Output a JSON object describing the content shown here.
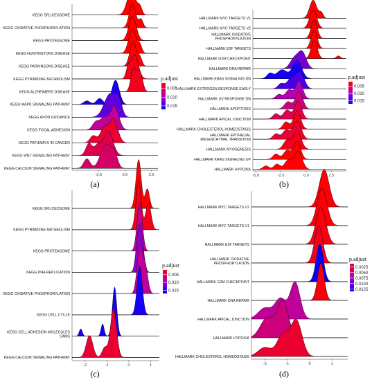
{
  "chart_data": [
    {
      "panel": "(a)",
      "type": "ridgeline",
      "xlim": [
        -5,
        3.1
      ],
      "xticks": [
        -2.5,
        0.0,
        2.5
      ],
      "xtick_labels": [
        "-2.5",
        "0.0",
        "2.5"
      ],
      "legend_title": "p.adjust",
      "legend_ticks": [
        0.005,
        0.01,
        0.015
      ],
      "legend_tick_labels": [
        "0.005",
        "0.010",
        "0.015"
      ],
      "legend_range": [
        0.002,
        0.017
      ],
      "series": [
        {
          "name": "KEGG SPLICEOSOME",
          "p": 0.002,
          "peaks": [
            [
              0.6,
              0.4,
              1.0
            ],
            [
              1.4,
              0.2,
              0.3
            ]
          ]
        },
        {
          "name": "KEGG OXIDATIVE PHOSPHORYLATION",
          "p": 0.002,
          "peaks": [
            [
              0.7,
              0.3,
              1.0
            ],
            [
              1.5,
              0.2,
              0.35
            ]
          ]
        },
        {
          "name": "KEGG PROTEASOME",
          "p": 0.002,
          "peaks": [
            [
              0.7,
              0.35,
              1.0
            ]
          ]
        },
        {
          "name": "KEGG HUNTINGTONS DISEASE",
          "p": 0.002,
          "peaks": [
            [
              0.7,
              0.35,
              1.0
            ],
            [
              1.4,
              0.2,
              0.3
            ]
          ]
        },
        {
          "name": "KEGG PARKINSONS DISEASE",
          "p": 0.002,
          "peaks": [
            [
              0.75,
              0.3,
              1.0
            ],
            [
              1.4,
              0.2,
              0.35
            ]
          ]
        },
        {
          "name": "KEGG PYRIMIDINE METABOLISM",
          "p": 0.003,
          "peaks": [
            [
              0.9,
              0.35,
              1.0
            ],
            [
              0.3,
              0.2,
              0.4
            ]
          ]
        },
        {
          "name": "KEGG ALZHEIMERS DISEASE",
          "p": 0.003,
          "peaks": [
            [
              0.8,
              0.25,
              0.7
            ],
            [
              1.4,
              0.25,
              0.6
            ]
          ]
        },
        {
          "name": "KEGG MAPK SIGNALING PATHWAY",
          "p": 0.016,
          "peaks": [
            [
              -0.9,
              0.35,
              1.0
            ],
            [
              -2.4,
              0.3,
              0.25
            ],
            [
              -3.6,
              0.3,
              0.15
            ]
          ]
        },
        {
          "name": "KEGG AXON GUIDANCE",
          "p": 0.013,
          "peaks": [
            [
              -1.4,
              0.55,
              1.0
            ],
            [
              -0.6,
              0.3,
              0.6
            ]
          ]
        },
        {
          "name": "KEGG FOCAL ADHESION",
          "p": 0.008,
          "peaks": [
            [
              -1.0,
              0.4,
              1.0
            ],
            [
              -2.0,
              0.4,
              0.5
            ],
            [
              -2.8,
              0.3,
              0.3
            ]
          ]
        },
        {
          "name": "KEGG PATHWAYS IN CANCER",
          "p": 0.004,
          "peaks": [
            [
              -1.1,
              0.4,
              1.0
            ],
            [
              -2.0,
              0.35,
              0.6
            ],
            [
              -3.0,
              0.3,
              0.3
            ]
          ]
        },
        {
          "name": "KEGG WNT SIGNALING PATHWAY",
          "p": 0.005,
          "peaks": [
            [
              -1.6,
              0.45,
              1.0
            ],
            [
              -3.4,
              0.3,
              0.5
            ],
            [
              -2.6,
              0.3,
              0.4
            ]
          ]
        },
        {
          "name": "KEGG CALCIUM SIGNALING PATHWAY",
          "p": 0.006,
          "peaks": [
            [
              -1.8,
              0.5,
              1.0
            ],
            [
              -3.6,
              0.3,
              0.4
            ],
            [
              -1.0,
              0.3,
              0.5
            ]
          ]
        }
      ]
    },
    {
      "panel": "(b)",
      "type": "ridgeline",
      "xlim": [
        -5.3,
        4.0
      ],
      "xticks": [
        -5.0,
        -2.5,
        0.0,
        2.5
      ],
      "xtick_labels": [
        "-5.0",
        "-2.5",
        "0.0",
        "2.5"
      ],
      "legend_title": "p.adjust",
      "legend_ticks": [
        0.005,
        0.01,
        0.015
      ],
      "legend_tick_labels": [
        "0.005",
        "0.010",
        "0.015"
      ],
      "legend_range": [
        0.002,
        0.017
      ],
      "series": [
        {
          "name": "HALLMARK MYC TARGETS V1",
          "p": 0.002,
          "peaks": [
            [
              0.7,
              0.35,
              1.0
            ],
            [
              1.5,
              0.2,
              0.3
            ]
          ]
        },
        {
          "name": "HALLMARK MYC TARGETS V2",
          "p": 0.002,
          "peaks": [
            [
              0.7,
              0.35,
              1.0
            ]
          ]
        },
        {
          "name": "HALLMARK OXIDATIVE PHOSPHORYLATION",
          "p": 0.002,
          "peaks": [
            [
              0.8,
              0.3,
              1.0
            ]
          ]
        },
        {
          "name": "HALLMARK E2F TARGETS",
          "p": 0.002,
          "peaks": [
            [
              0.8,
              0.3,
              1.0
            ]
          ]
        },
        {
          "name": "HALLMARK G2M CHECKPOINT",
          "p": 0.002,
          "peaks": [
            [
              0.8,
              0.3,
              1.0
            ],
            [
              3.2,
              0.2,
              0.15
            ]
          ]
        },
        {
          "name": "HALLMARK DNA REPAIR",
          "p": 0.012,
          "peaks": [
            [
              -0.4,
              0.4,
              1.0
            ],
            [
              -1.2,
              0.4,
              0.6
            ]
          ]
        },
        {
          "name": "HALLMARK KRAS SIGNALING DN",
          "p": 0.016,
          "peaks": [
            [
              -0.9,
              0.45,
              1.0
            ],
            [
              -2.4,
              0.5,
              0.5
            ],
            [
              -3.6,
              0.3,
              0.3
            ]
          ]
        },
        {
          "name": "HALLMARK ESTROGEN RESPONSE EARLY",
          "p": 0.014,
          "peaks": [
            [
              -0.6,
              0.4,
              1.0
            ],
            [
              -1.5,
              0.4,
              0.6
            ],
            [
              -2.5,
              0.3,
              0.3
            ]
          ]
        },
        {
          "name": "HALLMARK UV RESPONSE DN",
          "p": 0.009,
          "peaks": [
            [
              -0.7,
              0.35,
              1.0
            ],
            [
              -1.7,
              0.35,
              0.5
            ],
            [
              -2.7,
              0.3,
              0.25
            ]
          ]
        },
        {
          "name": "HALLMARK APOPTOSIS",
          "p": 0.007,
          "peaks": [
            [
              -0.7,
              0.35,
              1.0
            ],
            [
              -1.8,
              0.35,
              0.4
            ]
          ]
        },
        {
          "name": "HALLMARK APICAL JUNCTION",
          "p": 0.005,
          "peaks": [
            [
              -0.8,
              0.35,
              1.0
            ],
            [
              -1.9,
              0.35,
              0.5
            ],
            [
              -3.0,
              0.3,
              0.3
            ]
          ]
        },
        {
          "name": "HALLMARK CHOLESTEROL HOMEOSTASIS",
          "p": 0.003,
          "peaks": [
            [
              -0.9,
              0.35,
              1.0
            ],
            [
              -2.0,
              0.3,
              0.4
            ]
          ]
        },
        {
          "name": "HALLMARK EPITHELIAL MESENCHYMAL TRANSITION",
          "p": 0.004,
          "peaks": [
            [
              -0.9,
              0.4,
              1.0
            ],
            [
              -2.0,
              0.35,
              0.5
            ],
            [
              -3.0,
              0.3,
              0.3
            ]
          ]
        },
        {
          "name": "HALLMARK MYOGENESIS",
          "p": 0.003,
          "peaks": [
            [
              -0.9,
              0.4,
              1.0
            ],
            [
              -1.9,
              0.35,
              0.5
            ]
          ]
        },
        {
          "name": "HALLMARK KRAS SIGNALING UP",
          "p": 0.002,
          "peaks": [
            [
              -0.9,
              0.35,
              1.0
            ],
            [
              -1.9,
              0.35,
              0.5
            ],
            [
              -3.0,
              0.3,
              0.3
            ]
          ]
        },
        {
          "name": "HALLMARK HYPOXIA",
          "p": 0.002,
          "peaks": [
            [
              -0.8,
              0.4,
              1.0
            ],
            [
              -1.8,
              0.35,
              0.5
            ],
            [
              -2.9,
              0.3,
              0.3
            ],
            [
              -4.0,
              0.3,
              0.2
            ]
          ]
        }
      ]
    },
    {
      "panel": "(c)",
      "type": "ridgeline",
      "xlim": [
        -2.6,
        1.4
      ],
      "xticks": [
        -2,
        -1,
        0,
        1
      ],
      "xtick_labels": [
        "-2",
        "-1",
        "0",
        "1"
      ],
      "legend_title": "p.adjust",
      "legend_ticks": [
        0.005,
        0.01,
        0.015
      ],
      "legend_tick_labels": [
        "0.005",
        "0.010",
        "0.015"
      ],
      "legend_range": [
        0.002,
        0.017
      ],
      "series": [
        {
          "name": "KEGG SPLICEOSOME",
          "p": 0.002,
          "peaks": [
            [
              0.45,
              0.12,
              1.0
            ],
            [
              0.85,
              0.1,
              0.4
            ]
          ]
        },
        {
          "name": "KEGG PYRIMIDINE METABOLISM",
          "p": 0.003,
          "peaks": [
            [
              0.45,
              0.12,
              1.0
            ],
            [
              0.9,
              0.12,
              0.55
            ]
          ]
        },
        {
          "name": "KEGG PROTEASOME",
          "p": 0.008,
          "peaks": [
            [
              0.5,
              0.12,
              1.0
            ]
          ]
        },
        {
          "name": "KEGG DNA REPLICATION",
          "p": 0.011,
          "peaks": [
            [
              0.55,
              0.12,
              1.0
            ],
            [
              0.4,
              0.1,
              0.5
            ]
          ]
        },
        {
          "name": "KEGG OXIDATIVE PHOSPHORYLATION",
          "p": 0.008,
          "peaks": [
            [
              0.5,
              0.12,
              1.0
            ],
            [
              0.75,
              0.12,
              0.6
            ]
          ]
        },
        {
          "name": "KEGG CELL CYCLE",
          "p": 0.016,
          "peaks": [
            [
              0.5,
              0.12,
              1.0
            ]
          ]
        },
        {
          "name": "KEGG CELL ADHESION MOLECULES CAMS",
          "p": 0.016,
          "peaks": [
            [
              -0.65,
              0.1,
              1.0
            ],
            [
              -1.2,
              0.07,
              0.25
            ],
            [
              -2.2,
              0.07,
              0.15
            ]
          ]
        },
        {
          "name": "KEGG CALCIUM SIGNALING PATHWAY",
          "p": 0.004,
          "peaks": [
            [
              -0.7,
              0.14,
              1.0
            ],
            [
              -1.8,
              0.15,
              0.45
            ],
            [
              -1.1,
              0.12,
              0.2
            ]
          ]
        }
      ]
    },
    {
      "panel": "(d)",
      "type": "ridgeline",
      "xlim": [
        -2.6,
        1.7
      ],
      "xticks": [
        -2,
        -1,
        0,
        1
      ],
      "xtick_labels": [
        "-2",
        "-1",
        "0",
        "1"
      ],
      "legend_title": "p.adjust",
      "legend_ticks": [
        0.0025,
        0.005,
        0.0075,
        0.01,
        0.0125
      ],
      "legend_tick_labels": [
        "0.0025",
        "0.0050",
        "0.0075",
        "0.0100",
        "0.0125"
      ],
      "legend_range": [
        0.001,
        0.0135
      ],
      "series": [
        {
          "name": "HALLMARK MYC TARGETS V2",
          "p": 0.0012,
          "peaks": [
            [
              0.65,
              0.22,
              1.0
            ]
          ]
        },
        {
          "name": "HALLMARK MYC TARGETS V1",
          "p": 0.0012,
          "peaks": [
            [
              0.55,
              0.22,
              1.0
            ]
          ]
        },
        {
          "name": "HALLMARK E2F TARGETS",
          "p": 0.0015,
          "peaks": [
            [
              0.5,
              0.22,
              1.0
            ]
          ]
        },
        {
          "name": "HALLMARK OXIDATIVE PHOSPHORYLATION",
          "p": 0.002,
          "peaks": [
            [
              0.4,
              0.18,
              1.0
            ]
          ]
        },
        {
          "name": "HALLMARK G2M CHECKPOINT",
          "p": 0.0132,
          "peaks": [
            [
              0.45,
              0.16,
              1.0
            ]
          ]
        },
        {
          "name": "HALLMARK DNA REPAIR",
          "p": 0.0015,
          "peaks": [
            [
              0.5,
              0.15,
              0.5
            ]
          ]
        },
        {
          "name": "HALLMARK APICAL JUNCTION",
          "p": 0.006,
          "peaks": [
            [
              -0.65,
              0.22,
              1.0
            ],
            [
              -1.3,
              0.25,
              0.55
            ],
            [
              -2.0,
              0.3,
              0.3
            ]
          ]
        },
        {
          "name": "HALLMARK HYPOXIA",
          "p": 0.005,
          "peaks": [
            [
              -1.2,
              0.25,
              1.0
            ],
            [
              -1.9,
              0.3,
              0.55
            ]
          ]
        },
        {
          "name": "HALLMARK CHOLESTEROL HOMEOSTASIS",
          "p": 0.0025,
          "peaks": [
            [
              -0.6,
              0.25,
              1.0
            ],
            [
              -1.2,
              0.25,
              0.6
            ],
            [
              -2.0,
              0.3,
              0.25
            ]
          ]
        }
      ]
    }
  ],
  "layout_labels": [
    "(a)",
    "(b)",
    "(c)",
    "(d)"
  ]
}
